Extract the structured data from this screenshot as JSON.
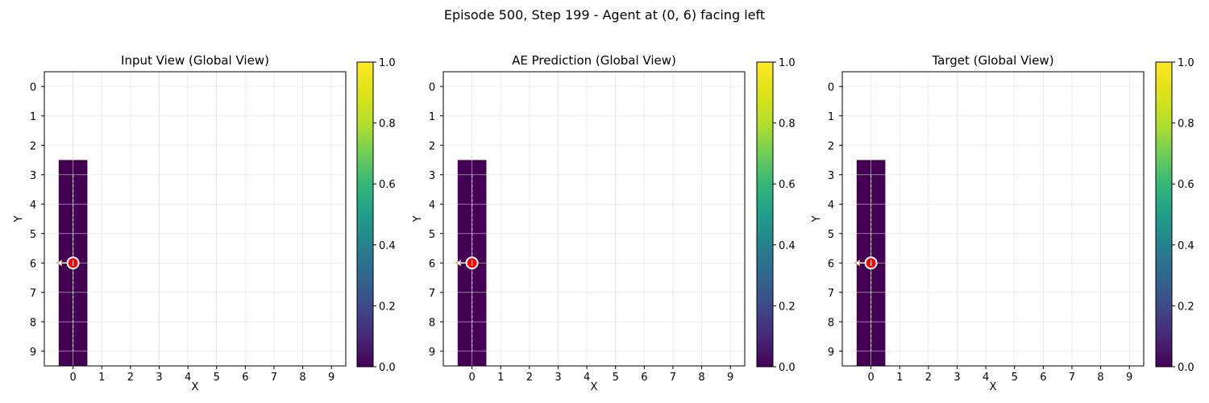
{
  "figure": {
    "suptitle": "Episode 500, Step 199 - Agent at (0, 6) facing left"
  },
  "colors": {
    "agent_fill": "#ff0000",
    "agent_edge": "#ffffff",
    "trail": "#c8c8c8",
    "cell": "#440154",
    "grid": "#dddddd",
    "arrow": "#ffffff"
  },
  "chart_data": [
    {
      "type": "heatmap",
      "title": "Input View (Global View)",
      "xlabel": "X",
      "ylabel": "Y",
      "x_ticks": [
        "0",
        "1",
        "2",
        "3",
        "4",
        "5",
        "6",
        "7",
        "8",
        "9"
      ],
      "y_ticks": [
        "0",
        "1",
        "2",
        "3",
        "4",
        "5",
        "6",
        "7",
        "8",
        "9"
      ],
      "xlim": [
        -1,
        9.5
      ],
      "ylim": [
        9.5,
        -0.5
      ],
      "grid": true,
      "cells": [
        [
          0,
          3,
          0
        ],
        [
          0,
          4,
          0
        ],
        [
          0,
          5,
          0
        ],
        [
          0,
          6,
          0
        ],
        [
          0,
          7,
          0
        ],
        [
          0,
          8,
          0
        ],
        [
          0,
          9,
          0
        ]
      ],
      "trail": [
        [
          0,
          3
        ],
        [
          0,
          9
        ]
      ],
      "agent": {
        "x": 0,
        "y": 6,
        "facing": "left"
      },
      "colorbar": {
        "cmap": "viridis",
        "range": [
          0.0,
          1.0
        ],
        "ticks": [
          "0.0",
          "0.2",
          "0.4",
          "0.6",
          "0.8",
          "1.0"
        ]
      }
    },
    {
      "type": "heatmap",
      "title": "AE Prediction (Global View)",
      "xlabel": "X",
      "ylabel": "Y",
      "x_ticks": [
        "0",
        "1",
        "2",
        "3",
        "4",
        "5",
        "6",
        "7",
        "8",
        "9"
      ],
      "y_ticks": [
        "0",
        "1",
        "2",
        "3",
        "4",
        "5",
        "6",
        "7",
        "8",
        "9"
      ],
      "xlim": [
        -1,
        9.5
      ],
      "ylim": [
        9.5,
        -0.5
      ],
      "grid": true,
      "cells": [
        [
          0,
          3,
          0
        ],
        [
          0,
          4,
          0
        ],
        [
          0,
          5,
          0
        ],
        [
          0,
          6,
          0
        ],
        [
          0,
          7,
          0
        ],
        [
          0,
          8,
          0
        ],
        [
          0,
          9,
          0
        ]
      ],
      "trail": [
        [
          0,
          3
        ],
        [
          0,
          9
        ]
      ],
      "agent": {
        "x": 0,
        "y": 6,
        "facing": "left"
      },
      "colorbar": {
        "cmap": "viridis",
        "range": [
          0.0,
          1.0
        ],
        "ticks": [
          "0.0",
          "0.2",
          "0.4",
          "0.6",
          "0.8",
          "1.0"
        ]
      }
    },
    {
      "type": "heatmap",
      "title": "Target (Global View)",
      "xlabel": "X",
      "ylabel": "Y",
      "x_ticks": [
        "0",
        "1",
        "2",
        "3",
        "4",
        "5",
        "6",
        "7",
        "8",
        "9"
      ],
      "y_ticks": [
        "0",
        "1",
        "2",
        "3",
        "4",
        "5",
        "6",
        "7",
        "8",
        "9"
      ],
      "xlim": [
        -1,
        9.5
      ],
      "ylim": [
        9.5,
        -0.5
      ],
      "grid": true,
      "cells": [
        [
          0,
          3,
          0
        ],
        [
          0,
          4,
          0
        ],
        [
          0,
          5,
          0
        ],
        [
          0,
          6,
          0
        ],
        [
          0,
          7,
          0
        ],
        [
          0,
          8,
          0
        ],
        [
          0,
          9,
          0
        ]
      ],
      "trail": [
        [
          0,
          3
        ],
        [
          0,
          9
        ]
      ],
      "agent": {
        "x": 0,
        "y": 6,
        "facing": "left"
      },
      "colorbar": {
        "cmap": "viridis",
        "range": [
          0.0,
          1.0
        ],
        "ticks": [
          "0.0",
          "0.2",
          "0.4",
          "0.6",
          "0.8",
          "1.0"
        ]
      }
    }
  ]
}
